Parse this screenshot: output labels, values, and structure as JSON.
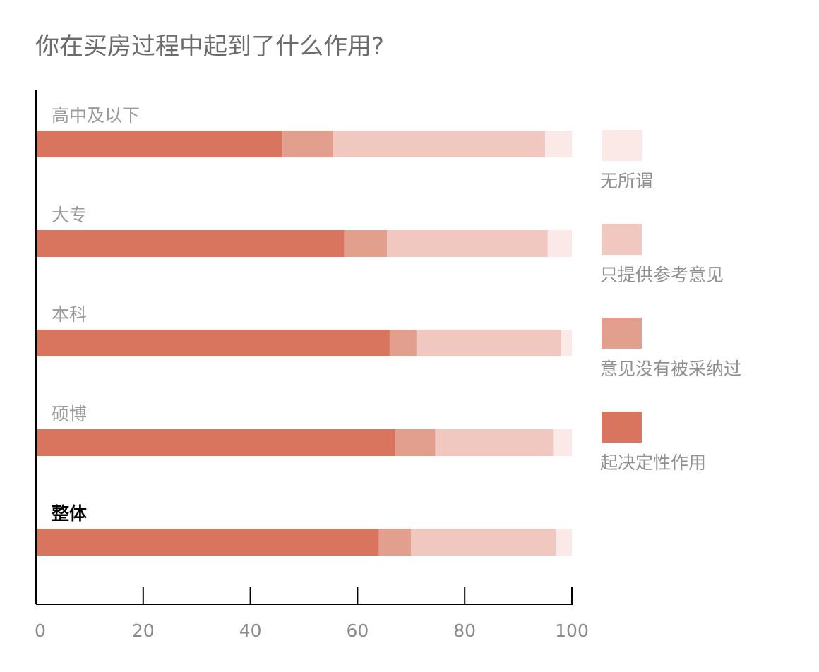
{
  "chart_data": {
    "type": "bar",
    "orientation": "horizontal",
    "stacked": true,
    "title": "你在买房过程中起到了什么作用?",
    "categories": [
      "高中及以下",
      "大专",
      "本科",
      "硕博",
      "整体"
    ],
    "emphasized_category": "整体",
    "series": [
      {
        "name": "起决定性作用",
        "color": "#d9755f",
        "values": [
          46,
          57.5,
          66,
          67,
          64
        ]
      },
      {
        "name": "意见没有被采纳过",
        "color": "#e29f8d",
        "values": [
          9.5,
          8,
          5,
          7.5,
          6
        ]
      },
      {
        "name": "只提供参考意见",
        "color": "#f0c8bf",
        "values": [
          39.5,
          30,
          27,
          22,
          27
        ]
      },
      {
        "name": "无所谓",
        "color": "#fae9e6",
        "values": [
          5,
          4.5,
          2,
          3.5,
          3
        ]
      }
    ],
    "legend_order": [
      "无所谓",
      "只提供参考意见",
      "意见没有被采纳过",
      "起决定性作用"
    ],
    "xlim": [
      0,
      100
    ],
    "xticks": [
      0,
      20,
      40,
      60,
      80,
      100
    ],
    "legend_position": "right",
    "grid": false
  }
}
